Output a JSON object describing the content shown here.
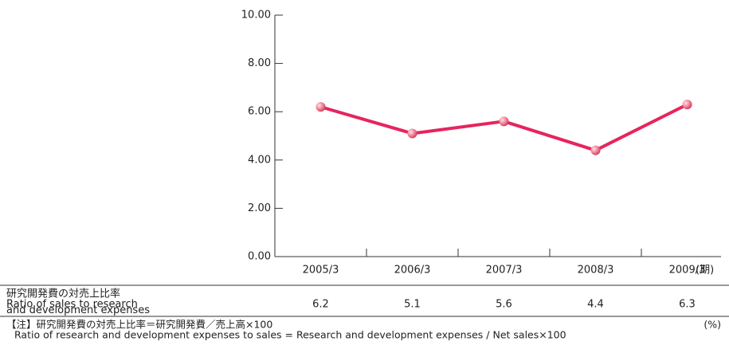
{
  "chart_data": {
    "type": "line",
    "categories": [
      "2005/3",
      "2006/3",
      "2007/3",
      "2008/3",
      "2009/3"
    ],
    "period_label": "(期)",
    "series": [
      {
        "name": "研究開発費の対売上比率",
        "color": "#e6245e",
        "values": [
          6.2,
          5.1,
          5.6,
          4.4,
          6.3
        ]
      }
    ],
    "ylim": [
      0,
      10
    ],
    "yticks": [
      {
        "value": 0,
        "label": "0.00"
      },
      {
        "value": 2,
        "label": "2.00"
      },
      {
        "value": 4,
        "label": "4.00"
      },
      {
        "value": 6,
        "label": "6.00"
      },
      {
        "value": 8,
        "label": "8.00"
      },
      {
        "value": 10,
        "label": "10.00"
      }
    ],
    "table_label": [
      "研究開発費の対売上比率",
      "Ratio of sales to research",
      "and development expenses"
    ],
    "note": "【注】研究開発費の対売上比率＝研究開発費／売上高×100",
    "unit": "(%)",
    "note_en": "Ratio of research and development expenses to sales = Research and development expenses / Net sales×100"
  }
}
